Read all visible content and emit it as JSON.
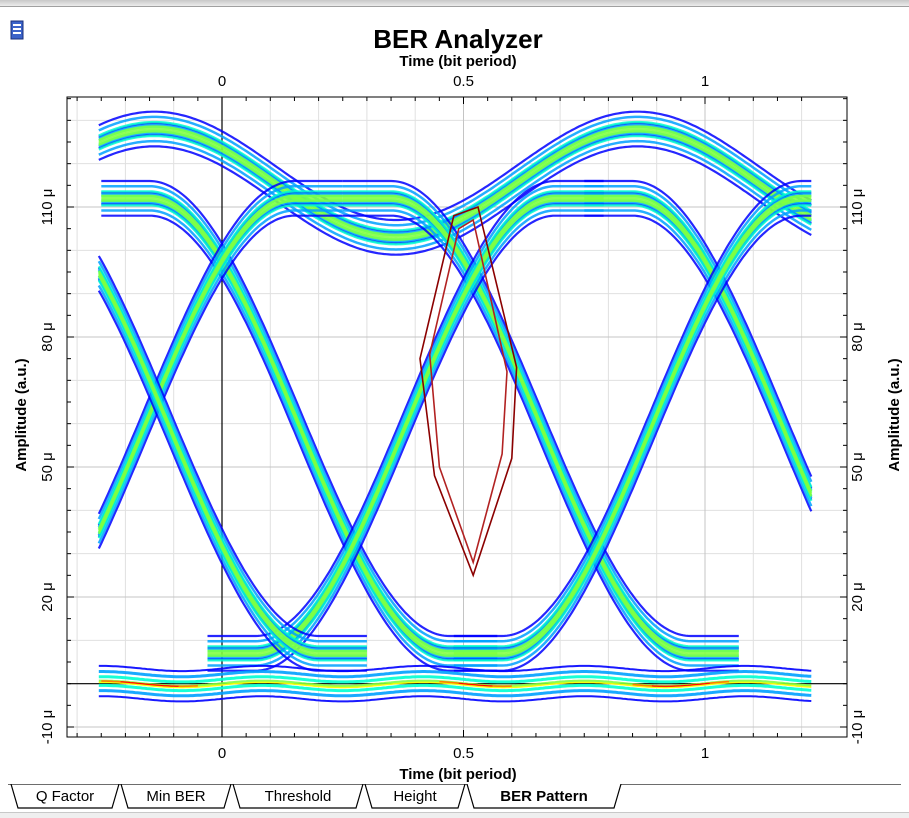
{
  "chart_data": {
    "type": "eye-diagram",
    "title": "BER Analyzer",
    "xlabel_top": "Time (bit period)",
    "xlabel_bottom": "Time (bit period)",
    "ylabel_left": "Amplitude (a.u.)",
    "ylabel_right": "Amplitude (a.u.)",
    "x_ticks": [
      {
        "value": 0,
        "label": "0"
      },
      {
        "value": 0.5,
        "label": "0.5"
      },
      {
        "value": 1,
        "label": "1"
      }
    ],
    "y_ticks": [
      {
        "value": -10,
        "label": "-10 μ"
      },
      {
        "value": 20,
        "label": "20 μ"
      },
      {
        "value": 50,
        "label": "50 μ"
      },
      {
        "value": 80,
        "label": "80 μ"
      },
      {
        "value": 110,
        "label": "110 μ"
      }
    ],
    "xlim": [
      -0.32,
      1.22
    ],
    "ylim": [
      -15,
      140
    ],
    "grid": true,
    "colormap": [
      "#0000ff",
      "#00a0ff",
      "#00ffd0",
      "#80ff40",
      "#ffff00",
      "#ff8000",
      "#ff0000"
    ],
    "eye_contour": {
      "color": "#8b0000",
      "outer": [
        [
          0.41,
          75
        ],
        [
          0.48,
          108
        ],
        [
          0.53,
          110
        ],
        [
          0.61,
          73
        ],
        [
          0.6,
          52
        ],
        [
          0.52,
          25
        ],
        [
          0.44,
          48
        ]
      ],
      "inner": [
        [
          0.43,
          76
        ],
        [
          0.49,
          105
        ],
        [
          0.52,
          107
        ],
        [
          0.59,
          72
        ],
        [
          0.58,
          53
        ],
        [
          0.52,
          28
        ],
        [
          0.45,
          50
        ]
      ]
    },
    "traces": {
      "high_level": 110,
      "low_level": 0,
      "high_ripple_peak": 128,
      "high_ripple_trough": 103,
      "low_ripple_peak": 15,
      "crossing_level": 50,
      "crossing_times": [
        0.2,
        0.72
      ]
    }
  },
  "tabs": [
    {
      "label": "Q Factor",
      "active": false
    },
    {
      "label": "Min BER",
      "active": false
    },
    {
      "label": "Threshold",
      "active": false
    },
    {
      "label": "Height",
      "active": false
    },
    {
      "label": "BER Pattern",
      "active": true
    }
  ]
}
